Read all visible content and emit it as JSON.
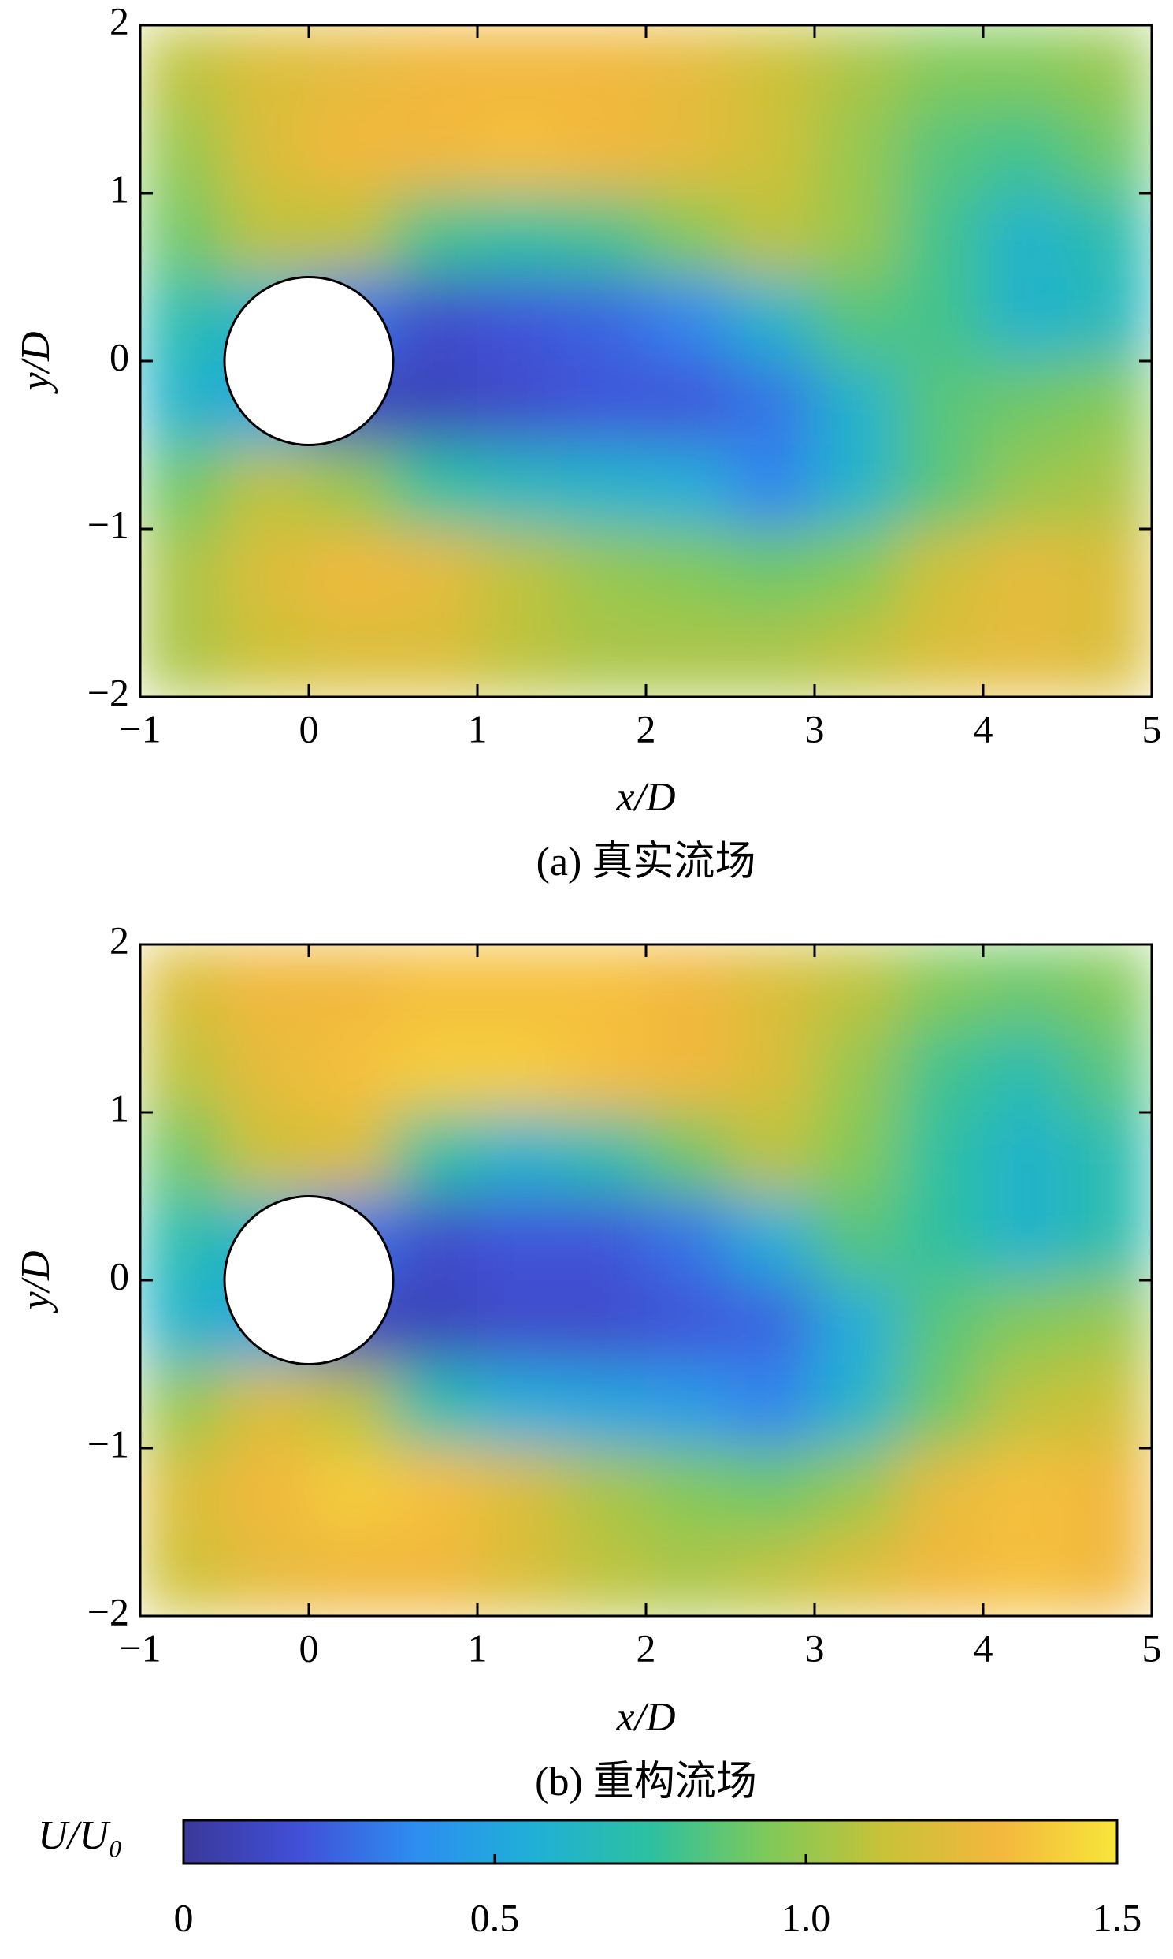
{
  "chart_data": [
    {
      "type": "heatmap",
      "caption": "(a) 真实流场",
      "xlabel": "x/D",
      "ylabel": "y/D",
      "xlim": [
        -1,
        5
      ],
      "ylim": [
        -2,
        2
      ],
      "xticks": [
        {
          "value": -1,
          "label": "−1"
        },
        0,
        1,
        2,
        3,
        4,
        5
      ],
      "yticks": [
        {
          "value": -2,
          "label": "−2"
        },
        {
          "value": -1,
          "label": "−1"
        },
        0,
        1,
        2
      ],
      "obstacle": {
        "cx": 0,
        "cy": 0,
        "r": 0.5
      },
      "x": [
        -0.75,
        -0.25,
        0.25,
        0.75,
        1.25,
        1.75,
        2.25,
        2.75,
        3.25,
        3.75,
        4.25,
        4.75
      ],
      "y": [
        1.75,
        1.25,
        0.75,
        0.25,
        -0.25,
        -0.75,
        -1.25,
        -1.75
      ],
      "z": [
        [
          1.1,
          1.2,
          1.25,
          1.3,
          1.3,
          1.3,
          1.25,
          1.15,
          1.05,
          0.95,
          0.95,
          1.0
        ],
        [
          1.0,
          1.2,
          1.3,
          1.3,
          1.35,
          1.3,
          1.25,
          1.15,
          1.0,
          0.85,
          0.8,
          0.9
        ],
        [
          0.9,
          1.1,
          1.1,
          0.8,
          0.75,
          0.8,
          0.95,
          1.1,
          1.0,
          0.8,
          0.6,
          0.7
        ],
        [
          0.7,
          0.6,
          0.3,
          0.15,
          0.2,
          0.25,
          0.35,
          0.6,
          0.85,
          0.8,
          0.6,
          0.65
        ],
        [
          0.6,
          0.5,
          0.1,
          0.1,
          0.15,
          0.2,
          0.2,
          0.3,
          0.6,
          0.85,
          0.9,
          0.95
        ],
        [
          0.9,
          1.1,
          1.0,
          0.75,
          0.65,
          0.6,
          0.55,
          0.35,
          0.6,
          0.85,
          1.0,
          1.05
        ],
        [
          1.05,
          1.2,
          1.3,
          1.25,
          1.1,
          1.0,
          0.95,
          0.9,
          0.95,
          1.15,
          1.25,
          1.2
        ],
        [
          1.05,
          1.15,
          1.2,
          1.2,
          1.1,
          1.05,
          1.05,
          1.05,
          1.1,
          1.2,
          1.25,
          1.2
        ]
      ]
    },
    {
      "type": "heatmap",
      "caption": "(b) 重构流场",
      "xlabel": "x/D",
      "ylabel": "y/D",
      "xlim": [
        -1,
        5
      ],
      "ylim": [
        -2,
        2
      ],
      "xticks": [
        {
          "value": -1,
          "label": "−1"
        },
        0,
        1,
        2,
        3,
        4,
        5
      ],
      "yticks": [
        {
          "value": -2,
          "label": "−2"
        },
        {
          "value": -1,
          "label": "−1"
        },
        0,
        1,
        2
      ],
      "obstacle": {
        "cx": 0,
        "cy": 0,
        "r": 0.5
      },
      "x": [
        -0.75,
        -0.25,
        0.25,
        0.75,
        1.25,
        1.75,
        2.25,
        2.75,
        3.25,
        3.75,
        4.25,
        4.75
      ],
      "y": [
        1.75,
        1.25,
        0.75,
        0.25,
        -0.25,
        -0.75,
        -1.25,
        -1.75
      ],
      "z": [
        [
          1.2,
          1.3,
          1.3,
          1.35,
          1.35,
          1.35,
          1.3,
          1.2,
          1.1,
          0.95,
          0.9,
          0.95
        ],
        [
          1.1,
          1.25,
          1.35,
          1.4,
          1.4,
          1.35,
          1.3,
          1.2,
          1.0,
          0.8,
          0.7,
          0.85
        ],
        [
          0.9,
          1.15,
          1.2,
          0.75,
          0.6,
          0.7,
          0.9,
          1.1,
          0.95,
          0.75,
          0.6,
          0.7
        ],
        [
          0.7,
          0.6,
          0.3,
          0.15,
          0.2,
          0.2,
          0.3,
          0.55,
          0.85,
          0.75,
          0.6,
          0.7
        ],
        [
          0.6,
          0.5,
          0.1,
          0.1,
          0.15,
          0.15,
          0.2,
          0.25,
          0.55,
          0.85,
          0.95,
          1.0
        ],
        [
          1.0,
          1.2,
          1.1,
          0.7,
          0.55,
          0.5,
          0.45,
          0.35,
          0.6,
          0.9,
          1.1,
          1.15
        ],
        [
          1.2,
          1.3,
          1.4,
          1.35,
          1.2,
          1.05,
          0.95,
          0.9,
          1.0,
          1.25,
          1.35,
          1.3
        ],
        [
          1.15,
          1.25,
          1.3,
          1.3,
          1.2,
          1.1,
          1.05,
          1.1,
          1.2,
          1.3,
          1.35,
          1.3
        ]
      ]
    },
    {
      "type": "colorbar",
      "label": "U/U₀",
      "clim": [
        0,
        1.5
      ],
      "ticks": [
        0,
        {
          "value": 0.5,
          "label": "0.5"
        },
        {
          "value": 1,
          "label": "1.0"
        },
        1.5
      ],
      "colormap": [
        "#3a3898",
        "#4150d8",
        "#2d8ef0",
        "#1fb0d6",
        "#2dc0a0",
        "#7ec95a",
        "#c8c238",
        "#f4b73e",
        "#f7e63a"
      ]
    }
  ]
}
